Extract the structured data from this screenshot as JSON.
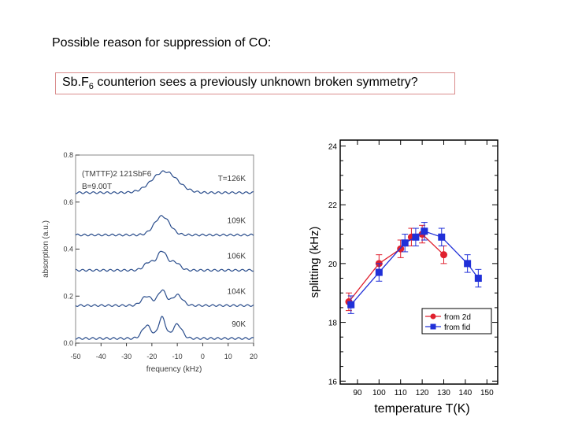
{
  "heading": "Possible reason for suppression of CO:",
  "box": {
    "prefix": "Sb.F",
    "sub": "6",
    "rest": " counterion sees a previously unknown broken symmetry?"
  },
  "chart_data": [
    {
      "type": "line",
      "title": "",
      "annotation_sample": "(TMTTF)2 121SbF6",
      "annotation_field": "B=9.00T",
      "xlabel": "frequency (kHz)",
      "ylabel": "absorption (a.u.)",
      "xlim": [
        -50,
        20
      ],
      "ylim": [
        0,
        0.8
      ],
      "xticks": [
        -50,
        -40,
        -30,
        -20,
        -10,
        0,
        10,
        20
      ],
      "yticks": [
        0.0,
        0.2,
        0.4,
        0.6,
        0.8
      ],
      "ytick_labels": [
        "0.0",
        "0.2",
        "0.4",
        "0.6",
        "0.8"
      ],
      "series": [
        {
          "name": "T=126K",
          "offset": 0.64,
          "peaks": [
            [
              -15,
              0.09,
              5
            ]
          ]
        },
        {
          "name": "109K",
          "offset": 0.46,
          "peaks": [
            [
              -16,
              0.08,
              3
            ]
          ]
        },
        {
          "name": "106K",
          "offset": 0.31,
          "peaks": [
            [
              -21,
              0.035,
              2
            ],
            [
              -16,
              0.08,
              1.8
            ],
            [
              -11,
              0.035,
              2
            ]
          ]
        },
        {
          "name": "104K",
          "offset": 0.16,
          "peaks": [
            [
              -22,
              0.04,
              2
            ],
            [
              -16,
              0.065,
              1.6
            ],
            [
              -10,
              0.045,
              2
            ]
          ]
        },
        {
          "name": "90K",
          "offset": 0.02,
          "peaks": [
            [
              -22,
              0.055,
              1.8
            ],
            [
              -16,
              0.09,
              1.4
            ],
            [
              -10,
              0.06,
              1.8
            ]
          ]
        }
      ]
    },
    {
      "type": "line",
      "title": "",
      "xlabel": "temperature T(K)",
      "ylabel": "splitting (kHz)",
      "xlim": [
        82,
        155
      ],
      "ylim": [
        15.9,
        24.2
      ],
      "xticks": [
        90,
        100,
        110,
        120,
        130,
        140,
        150
      ],
      "yticks": [
        16,
        18,
        20,
        22,
        24
      ],
      "legend_position": "bottom-right",
      "colors": {
        "red": "#e0202e",
        "blue": "#2030d8"
      },
      "series": [
        {
          "name": "from 2d",
          "color": "#e0202e",
          "marker": "circle",
          "x": [
            86,
            100,
            110,
            115,
            120,
            130
          ],
          "y": [
            18.7,
            20.0,
            20.5,
            20.9,
            21.0,
            20.3
          ],
          "err": [
            0.3,
            0.3,
            0.3,
            0.3,
            0.3,
            0.3
          ]
        },
        {
          "name": "from fid",
          "color": "#2030d8",
          "marker": "square",
          "x": [
            87,
            100,
            112,
            117,
            121,
            129,
            141,
            146
          ],
          "y": [
            18.6,
            19.7,
            20.7,
            20.9,
            21.1,
            20.9,
            20.0,
            19.5
          ],
          "err": [
            0.3,
            0.3,
            0.3,
            0.3,
            0.3,
            0.3,
            0.3,
            0.3
          ]
        }
      ]
    }
  ]
}
